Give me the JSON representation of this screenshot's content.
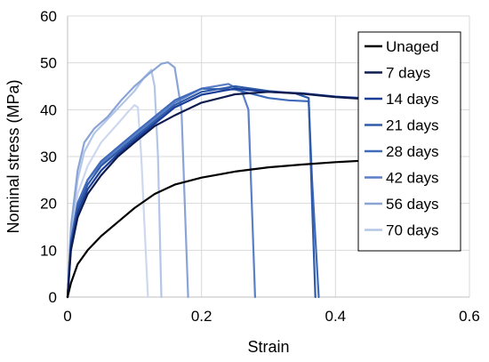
{
  "chart_data": {
    "type": "line",
    "title": "",
    "xlabel": "Strain",
    "ylabel": "Nominal stress (MPa)",
    "xlim": [
      0,
      0.6
    ],
    "ylim": [
      0,
      60
    ],
    "x_ticks": [
      "0",
      "0.2",
      "0.4",
      "0.6"
    ],
    "y_ticks": [
      "0",
      "10",
      "20",
      "30",
      "40",
      "50",
      "60"
    ],
    "grid": "vertical and horizontal, light gray",
    "legend_position": "right",
    "series": [
      {
        "name": "Unaged",
        "color": "#000000",
        "points": [
          [
            0,
            0
          ],
          [
            0.005,
            3
          ],
          [
            0.015,
            7
          ],
          [
            0.03,
            10
          ],
          [
            0.05,
            13
          ],
          [
            0.075,
            16
          ],
          [
            0.1,
            19
          ],
          [
            0.13,
            22
          ],
          [
            0.16,
            24
          ],
          [
            0.2,
            25.5
          ],
          [
            0.25,
            26.8
          ],
          [
            0.3,
            27.7
          ],
          [
            0.35,
            28.3
          ],
          [
            0.4,
            28.8
          ],
          [
            0.44,
            29.1
          ]
        ]
      },
      {
        "name": "7 days",
        "color": "#0d1b4f",
        "points": [
          [
            0,
            0
          ],
          [
            0.005,
            10
          ],
          [
            0.015,
            17
          ],
          [
            0.03,
            22
          ],
          [
            0.05,
            26
          ],
          [
            0.075,
            30
          ],
          [
            0.1,
            33
          ],
          [
            0.13,
            36.5
          ],
          [
            0.16,
            38.8
          ],
          [
            0.2,
            41.5
          ],
          [
            0.25,
            43.3
          ],
          [
            0.3,
            43.8
          ],
          [
            0.35,
            43.4
          ],
          [
            0.4,
            42.7
          ],
          [
            0.44,
            42.3
          ]
        ]
      },
      {
        "name": "14 days",
        "color": "#1a3e98",
        "points": [
          [
            0,
            0
          ],
          [
            0.005,
            11
          ],
          [
            0.015,
            18
          ],
          [
            0.03,
            23
          ],
          [
            0.05,
            27
          ],
          [
            0.075,
            30.5
          ],
          [
            0.1,
            33.5
          ],
          [
            0.13,
            37
          ],
          [
            0.16,
            40.5
          ],
          [
            0.2,
            43.2
          ],
          [
            0.25,
            44.5
          ],
          [
            0.3,
            43.8
          ],
          [
            0.35,
            43.5
          ],
          [
            0.4,
            42.8
          ],
          [
            0.44,
            42.5
          ]
        ]
      },
      {
        "name": "21 days",
        "color": "#2f5aa8",
        "points": [
          [
            0,
            0
          ],
          [
            0.005,
            11
          ],
          [
            0.015,
            19
          ],
          [
            0.03,
            24
          ],
          [
            0.05,
            28
          ],
          [
            0.075,
            31
          ],
          [
            0.1,
            34
          ],
          [
            0.13,
            37.5
          ],
          [
            0.16,
            41
          ],
          [
            0.2,
            43.8
          ],
          [
            0.25,
            45
          ],
          [
            0.3,
            44
          ],
          [
            0.34,
            43.5
          ],
          [
            0.36,
            42.5
          ],
          [
            0.365,
            20
          ],
          [
            0.37,
            0
          ]
        ]
      },
      {
        "name": "28 days",
        "color": "#3f6bba",
        "points": [
          [
            0,
            0
          ],
          [
            0.005,
            12
          ],
          [
            0.015,
            20
          ],
          [
            0.03,
            25
          ],
          [
            0.05,
            29
          ],
          [
            0.075,
            32
          ],
          [
            0.1,
            35
          ],
          [
            0.13,
            38.5
          ],
          [
            0.16,
            42
          ],
          [
            0.2,
            44.5
          ],
          [
            0.25,
            44.3
          ],
          [
            0.3,
            42.5
          ],
          [
            0.33,
            42
          ],
          [
            0.36,
            41.8
          ],
          [
            0.365,
            25
          ],
          [
            0.375,
            0
          ]
        ]
      },
      {
        "name": "42 days",
        "color": "#5a7fc6",
        "points": [
          [
            0,
            0
          ],
          [
            0.005,
            12
          ],
          [
            0.015,
            20
          ],
          [
            0.03,
            25
          ],
          [
            0.05,
            28.5
          ],
          [
            0.075,
            31.5
          ],
          [
            0.1,
            34.5
          ],
          [
            0.13,
            38
          ],
          [
            0.16,
            41.5
          ],
          [
            0.2,
            44.5
          ],
          [
            0.24,
            45.5
          ],
          [
            0.26,
            44
          ],
          [
            0.27,
            40
          ],
          [
            0.275,
            20
          ],
          [
            0.28,
            0
          ]
        ]
      },
      {
        "name": "56 days",
        "color": "#8aa4d6",
        "points": [
          [
            0,
            0
          ],
          [
            0.005,
            15
          ],
          [
            0.015,
            27
          ],
          [
            0.025,
            33
          ],
          [
            0.04,
            36
          ],
          [
            0.06,
            38.5
          ],
          [
            0.08,
            42
          ],
          [
            0.1,
            45
          ],
          [
            0.12,
            47.5
          ],
          [
            0.14,
            49.8
          ],
          [
            0.15,
            50.1
          ],
          [
            0.16,
            49
          ],
          [
            0.17,
            40
          ],
          [
            0.175,
            20
          ],
          [
            0.18,
            0
          ]
        ]
      },
      {
        "name": "70 days",
        "color": "#b4c6e6",
        "points": [
          [
            0,
            0
          ],
          [
            0.005,
            14
          ],
          [
            0.015,
            25
          ],
          [
            0.025,
            31
          ],
          [
            0.04,
            35
          ],
          [
            0.06,
            38
          ],
          [
            0.08,
            41
          ],
          [
            0.1,
            44
          ],
          [
            0.115,
            47
          ],
          [
            0.125,
            48.5
          ],
          [
            0.13,
            45
          ],
          [
            0.135,
            30
          ],
          [
            0.14,
            0
          ]
        ]
      },
      {
        "name": "",
        "color": "#cdd8ef",
        "points": [
          [
            0,
            0
          ],
          [
            0.005,
            12
          ],
          [
            0.015,
            22
          ],
          [
            0.03,
            28
          ],
          [
            0.05,
            33
          ],
          [
            0.075,
            37
          ],
          [
            0.09,
            39.5
          ],
          [
            0.1,
            41
          ],
          [
            0.105,
            40.5
          ],
          [
            0.11,
            30
          ],
          [
            0.115,
            15
          ],
          [
            0.12,
            0
          ]
        ]
      }
    ]
  }
}
